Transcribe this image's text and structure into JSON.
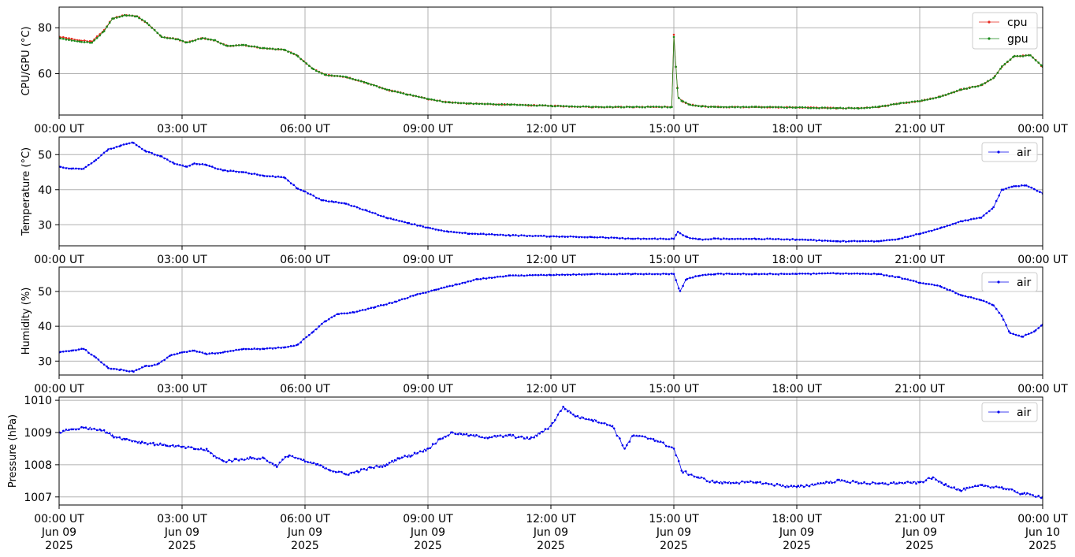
{
  "figure": {
    "background": "#ffffff",
    "grid_color": "#b0b0b0",
    "x_ticks": [
      "00:00 UT",
      "03:00 UT",
      "06:00 UT",
      "09:00 UT",
      "12:00 UT",
      "15:00 UT",
      "18:00 UT",
      "21:00 UT",
      "00:00 UT"
    ],
    "x_ticks_bottom": [
      {
        "time": "00:00 UT",
        "day": "Jun 09",
        "year": "2025"
      },
      {
        "time": "03:00 UT",
        "day": "Jun 09",
        "year": "2025"
      },
      {
        "time": "06:00 UT",
        "day": "Jun 09",
        "year": "2025"
      },
      {
        "time": "09:00 UT",
        "day": "Jun 09",
        "year": "2025"
      },
      {
        "time": "12:00 UT",
        "day": "Jun 09",
        "year": "2025"
      },
      {
        "time": "15:00 UT",
        "day": "Jun 09",
        "year": "2025"
      },
      {
        "time": "18:00 UT",
        "day": "Jun 09",
        "year": "2025"
      },
      {
        "time": "21:00 UT",
        "day": "Jun 09",
        "year": "2025"
      },
      {
        "time": "00:00 UT",
        "day": "Jun 10",
        "year": "2025"
      }
    ]
  },
  "chart_data": [
    {
      "type": "line",
      "ylabel": "CPU/GPU (°C)",
      "xlabel": "",
      "x_unit": "hours UT from 2025-06-09 00:00",
      "xlim": [
        0,
        24
      ],
      "ylim": [
        42,
        89
      ],
      "yticks": [
        60,
        80
      ],
      "grid": true,
      "legend_position": "top-right",
      "series": [
        {
          "name": "cpu",
          "color": "#e8271d",
          "x": [
            0,
            0.5,
            0.8,
            1.1,
            1.3,
            1.6,
            1.9,
            2.15,
            2.5,
            2.9,
            3.1,
            3.5,
            3.8,
            4.1,
            4.5,
            5.0,
            5.5,
            5.8,
            6.2,
            6.5,
            7.0,
            7.5,
            8.0,
            8.5,
            9.0,
            9.5,
            10.0,
            11.0,
            12.0,
            13.0,
            14.0,
            14.95,
            15.0,
            15.05,
            15.1,
            15.2,
            15.4,
            15.7,
            16.0,
            17.0,
            18.0,
            19.0,
            19.5,
            20.0,
            20.5,
            21.0,
            21.5,
            22.0,
            22.5,
            22.8,
            23.0,
            23.3,
            23.7,
            24.0
          ],
          "values": [
            76,
            74.5,
            74,
            79,
            84,
            85.5,
            85,
            82,
            76,
            75,
            73.5,
            75.5,
            74.5,
            72,
            72.5,
            71,
            70.5,
            68,
            62,
            59.5,
            58.5,
            56,
            53,
            51,
            49,
            47.5,
            47,
            46.5,
            46,
            45.5,
            45.5,
            45.5,
            77,
            63,
            50,
            48,
            46.5,
            45.8,
            45.5,
            45.5,
            45.3,
            45,
            45,
            45.5,
            47,
            48,
            50,
            53,
            55,
            58,
            63,
            67.5,
            68,
            63
          ]
        },
        {
          "name": "gpu",
          "color": "#1a8a1a",
          "x": [
            0,
            0.5,
            0.8,
            1.1,
            1.3,
            1.6,
            1.9,
            2.15,
            2.5,
            2.9,
            3.1,
            3.5,
            3.8,
            4.1,
            4.5,
            5.0,
            5.5,
            5.8,
            6.2,
            6.5,
            7.0,
            7.5,
            8.0,
            8.5,
            9.0,
            9.5,
            10.0,
            11.0,
            12.0,
            13.0,
            14.0,
            14.95,
            15.0,
            15.05,
            15.1,
            15.2,
            15.4,
            15.7,
            16.0,
            17.0,
            18.0,
            19.0,
            19.5,
            20.0,
            20.5,
            21.0,
            21.5,
            22.0,
            22.5,
            22.8,
            23.0,
            23.3,
            23.7,
            24.0
          ],
          "values": [
            75.5,
            74,
            73.5,
            78.5,
            84,
            85.5,
            85,
            82,
            76,
            75,
            73.5,
            75.5,
            74.5,
            72,
            72.5,
            71,
            70.5,
            68,
            62,
            59.5,
            58.5,
            56,
            53,
            51,
            49,
            47.5,
            47,
            46.5,
            46,
            45.5,
            45.5,
            45.5,
            76,
            63,
            50,
            48,
            46.5,
            45.8,
            45.5,
            45.5,
            45.3,
            45,
            45,
            45.5,
            47,
            48,
            50,
            53,
            55,
            58,
            63,
            67.5,
            68,
            63
          ]
        }
      ]
    },
    {
      "type": "line",
      "ylabel": "Temperature (°C)",
      "xlabel": "",
      "x_unit": "hours UT from 2025-06-09 00:00",
      "xlim": [
        0,
        24
      ],
      "ylim": [
        24,
        55
      ],
      "yticks": [
        30,
        40,
        50
      ],
      "grid": true,
      "legend_position": "top-right",
      "series": [
        {
          "name": "air",
          "color": "#0000ee",
          "x": [
            0,
            0.3,
            0.6,
            0.9,
            1.2,
            1.5,
            1.8,
            2.1,
            2.5,
            2.8,
            3.1,
            3.3,
            3.6,
            4.0,
            4.5,
            5.0,
            5.5,
            5.8,
            6.0,
            6.4,
            6.7,
            7.0,
            7.5,
            8.0,
            8.5,
            9.0,
            9.5,
            10.0,
            11.0,
            12.0,
            13.0,
            14.0,
            15.0,
            15.1,
            15.3,
            15.6,
            16.0,
            17.0,
            18.0,
            19.0,
            20.0,
            20.5,
            21.0,
            21.5,
            22.0,
            22.5,
            22.8,
            23.0,
            23.3,
            23.6,
            24.0
          ],
          "values": [
            46.5,
            46,
            46,
            48.5,
            51.5,
            52.5,
            53.5,
            51,
            49.5,
            47.5,
            46.5,
            47.5,
            47,
            45.5,
            45,
            44,
            43.5,
            40.5,
            39.5,
            37,
            36.5,
            36,
            34,
            32,
            30.5,
            29.2,
            28,
            27.5,
            27,
            26.7,
            26.5,
            26,
            26,
            28,
            26.5,
            25.8,
            26,
            26,
            25.8,
            25.3,
            25.3,
            26,
            27.5,
            29,
            31,
            32,
            35,
            40,
            41,
            41.2,
            39
          ]
        }
      ]
    },
    {
      "type": "line",
      "ylabel": "Humidity (%)",
      "xlabel": "",
      "x_unit": "hours UT from 2025-06-09 00:00",
      "xlim": [
        0,
        24
      ],
      "ylim": [
        26,
        57
      ],
      "yticks": [
        30,
        40,
        50
      ],
      "grid": true,
      "legend_position": "top-right",
      "series": [
        {
          "name": "air",
          "color": "#0000ee",
          "x": [
            0,
            0.3,
            0.6,
            0.9,
            1.2,
            1.5,
            1.8,
            2.1,
            2.4,
            2.7,
            3.0,
            3.3,
            3.6,
            4.0,
            4.5,
            5.0,
            5.5,
            5.8,
            6.2,
            6.5,
            6.8,
            7.2,
            7.7,
            8.2,
            8.7,
            9.2,
            9.7,
            10.2,
            11.0,
            12.0,
            13.0,
            14.0,
            15.0,
            15.15,
            15.3,
            15.6,
            16.0,
            17.0,
            18.0,
            19.0,
            20.0,
            20.5,
            21.0,
            21.5,
            22.0,
            22.5,
            22.8,
            23.0,
            23.2,
            23.5,
            23.8,
            24.0
          ],
          "values": [
            32.5,
            33,
            33.5,
            31,
            28,
            27.5,
            27,
            28.5,
            29,
            31.5,
            32.5,
            33,
            32,
            32.5,
            33.5,
            33.5,
            34,
            34.5,
            38.5,
            41.5,
            43.5,
            44,
            45.5,
            47,
            49,
            50.5,
            52,
            53.5,
            54.5,
            54.7,
            55,
            55,
            55,
            50,
            53.5,
            54.5,
            55,
            55,
            55,
            55.2,
            55,
            54,
            52.5,
            51.5,
            49,
            47.5,
            46,
            43,
            38,
            37,
            38.5,
            40.5
          ]
        }
      ]
    },
    {
      "type": "line",
      "ylabel": "Pressure (hPa)",
      "xlabel": "",
      "x_unit": "hours UT from 2025-06-09 00:00",
      "xlim": [
        0,
        24
      ],
      "ylim": [
        1006.75,
        1010.1
      ],
      "yticks": [
        1007,
        1008,
        1009,
        1010
      ],
      "grid": true,
      "legend_position": "top-right",
      "series": [
        {
          "name": "air",
          "color": "#0000ee",
          "x": [
            0,
            0.3,
            0.6,
            1.0,
            1.3,
            1.6,
            2.0,
            2.3,
            2.6,
            3.0,
            3.3,
            3.6,
            4.0,
            4.3,
            4.7,
            5.0,
            5.3,
            5.6,
            6.0,
            6.3,
            6.6,
            7.0,
            7.3,
            7.6,
            8.0,
            8.3,
            8.6,
            9.0,
            9.3,
            9.6,
            10.0,
            10.5,
            11.0,
            11.5,
            12.0,
            12.3,
            12.6,
            13.0,
            13.5,
            13.8,
            14.0,
            14.5,
            15.0,
            15.2,
            15.6,
            16.0,
            17.0,
            18.0,
            19.0,
            20.0,
            21.0,
            21.3,
            21.6,
            22.0,
            22.5,
            23.0,
            23.5,
            24.0
          ],
          "values": [
            1009.0,
            1009.1,
            1009.15,
            1009.1,
            1008.9,
            1008.8,
            1008.7,
            1008.65,
            1008.6,
            1008.55,
            1008.5,
            1008.45,
            1008.1,
            1008.15,
            1008.2,
            1008.2,
            1007.95,
            1008.3,
            1008.1,
            1008.0,
            1007.85,
            1007.7,
            1007.8,
            1007.9,
            1008.0,
            1008.2,
            1008.3,
            1008.5,
            1008.8,
            1009.0,
            1008.9,
            1008.85,
            1008.9,
            1008.8,
            1009.2,
            1009.8,
            1009.5,
            1009.4,
            1009.2,
            1008.5,
            1008.9,
            1008.8,
            1008.5,
            1007.8,
            1007.6,
            1007.45,
            1007.45,
            1007.3,
            1007.5,
            1007.4,
            1007.45,
            1007.6,
            1007.4,
            1007.2,
            1007.35,
            1007.3,
            1007.1,
            1007.0
          ]
        }
      ]
    }
  ]
}
